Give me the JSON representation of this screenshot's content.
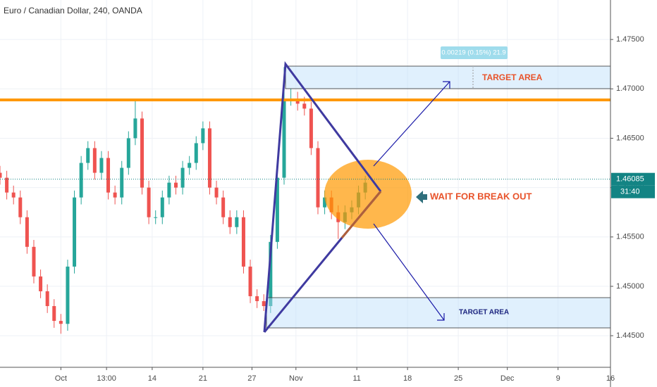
{
  "chart_data": {
    "type": "candlestick",
    "title": "Euro / Canadian Dollar, 240, OANDA",
    "candles": {
      "x": [
        0,
        4,
        8,
        12,
        16,
        20,
        24,
        28,
        32,
        36,
        40,
        44,
        48,
        52,
        56,
        60,
        64,
        68,
        72,
        76,
        80,
        84,
        88,
        92,
        96,
        100,
        104,
        108,
        112,
        116,
        120,
        124,
        128,
        132,
        136,
        140,
        144,
        148,
        152,
        156,
        160,
        164,
        168,
        172,
        176,
        180,
        184,
        188,
        192,
        196,
        200,
        204,
        208,
        212,
        216
      ],
      "open": [
        1.4615,
        1.461,
        1.4595,
        1.459,
        1.457,
        1.454,
        1.451,
        1.4495,
        1.448,
        1.4465,
        1.4462,
        1.452,
        1.459,
        1.4625,
        1.464,
        1.4615,
        1.463,
        1.4595,
        1.459,
        1.462,
        1.465,
        1.467,
        1.46,
        1.457,
        1.457,
        1.459,
        1.4605,
        1.46,
        1.462,
        1.4625,
        1.4645,
        1.466,
        1.46,
        1.459,
        1.457,
        1.456,
        1.457,
        1.452,
        1.449,
        1.4485,
        1.448,
        1.4545,
        1.461,
        1.469,
        1.469,
        1.4685,
        1.468,
        1.464,
        1.458,
        1.459,
        1.4575,
        1.4565,
        1.4575,
        1.458,
        1.4595
      ],
      "high": [
        1.4622,
        1.4617,
        1.4602,
        1.4597,
        1.4577,
        1.4547,
        1.4517,
        1.4502,
        1.4487,
        1.4472,
        1.4527,
        1.4597,
        1.4632,
        1.4647,
        1.4647,
        1.4637,
        1.4637,
        1.4602,
        1.4627,
        1.4657,
        1.4688,
        1.4677,
        1.4607,
        1.4577,
        1.4597,
        1.4612,
        1.4612,
        1.4627,
        1.4632,
        1.4652,
        1.4667,
        1.4667,
        1.4607,
        1.4597,
        1.4577,
        1.4577,
        1.4577,
        1.4527,
        1.4497,
        1.4492,
        1.4552,
        1.4617,
        1.4722,
        1.47,
        1.4697,
        1.4692,
        1.4687,
        1.4647,
        1.4597,
        1.4597,
        1.4582,
        1.4582,
        1.4587,
        1.4602,
        1.4612
      ],
      "low": [
        1.4603,
        1.4588,
        1.4583,
        1.4563,
        1.4533,
        1.4503,
        1.4488,
        1.4473,
        1.4458,
        1.4452,
        1.4455,
        1.4513,
        1.4583,
        1.4618,
        1.4608,
        1.4608,
        1.4588,
        1.4583,
        1.4583,
        1.4613,
        1.4643,
        1.4593,
        1.4563,
        1.4563,
        1.4563,
        1.4583,
        1.4593,
        1.4593,
        1.4613,
        1.4618,
        1.4638,
        1.4593,
        1.4583,
        1.4563,
        1.4553,
        1.4553,
        1.4513,
        1.4483,
        1.4478,
        1.4475,
        1.4473,
        1.4538,
        1.4603,
        1.4683,
        1.4678,
        1.4673,
        1.4633,
        1.4573,
        1.4573,
        1.4568,
        1.4548,
        1.4558,
        1.4568,
        1.4573,
        1.4588
      ],
      "close": [
        1.461,
        1.4595,
        1.459,
        1.457,
        1.454,
        1.451,
        1.4495,
        1.448,
        1.4465,
        1.4462,
        1.452,
        1.459,
        1.4625,
        1.464,
        1.4615,
        1.463,
        1.4595,
        1.459,
        1.462,
        1.465,
        1.467,
        1.46,
        1.457,
        1.457,
        1.459,
        1.4605,
        1.46,
        1.462,
        1.4625,
        1.4645,
        1.466,
        1.46,
        1.459,
        1.457,
        1.456,
        1.457,
        1.452,
        1.449,
        1.4485,
        1.448,
        1.4545,
        1.461,
        1.469,
        1.469,
        1.4685,
        1.468,
        1.464,
        1.458,
        1.459,
        1.4575,
        1.4565,
        1.4575,
        1.458,
        1.4595,
        1.4605
      ]
    },
    "up_color": "#26a69a",
    "down_color": "#ef5350",
    "xlim": [
      0,
      361
    ],
    "xticks": [
      {
        "value": 36,
        "label": "Oct"
      },
      {
        "value": 63,
        "label": "13:00"
      },
      {
        "value": 90,
        "label": "14"
      },
      {
        "value": 120,
        "label": "21"
      },
      {
        "value": 149,
        "label": "27"
      },
      {
        "value": 175,
        "label": "Nov"
      },
      {
        "value": 211,
        "label": "11"
      },
      {
        "value": 241,
        "label": "18"
      },
      {
        "value": 271,
        "label": "25"
      },
      {
        "value": 300,
        "label": "Dec"
      },
      {
        "value": 330,
        "label": "9"
      },
      {
        "value": 361,
        "label": "16"
      }
    ],
    "ylim": [
      1.4418,
      1.479
    ],
    "yticks": [
      {
        "value": 1.445,
        "label": "1.44500"
      },
      {
        "value": 1.45,
        "label": "1.45000"
      },
      {
        "value": 1.455,
        "label": "1.45500"
      },
      {
        "value": 1.46,
        "label": "1.46000"
      },
      {
        "value": 1.465,
        "label": "1.46500"
      },
      {
        "value": 1.47,
        "label": "1.47000"
      },
      {
        "value": 1.475,
        "label": "1.47500"
      }
    ],
    "grid": true,
    "last_price": 1.46085,
    "countdown": "31:40",
    "annotations": {
      "target_top": "TARGET AREA",
      "target_bottom": "TARGET AREA",
      "break_out": "WAIT FOR BREAK OUT",
      "measure": "0.00219 (0.15%) 21.9"
    }
  }
}
